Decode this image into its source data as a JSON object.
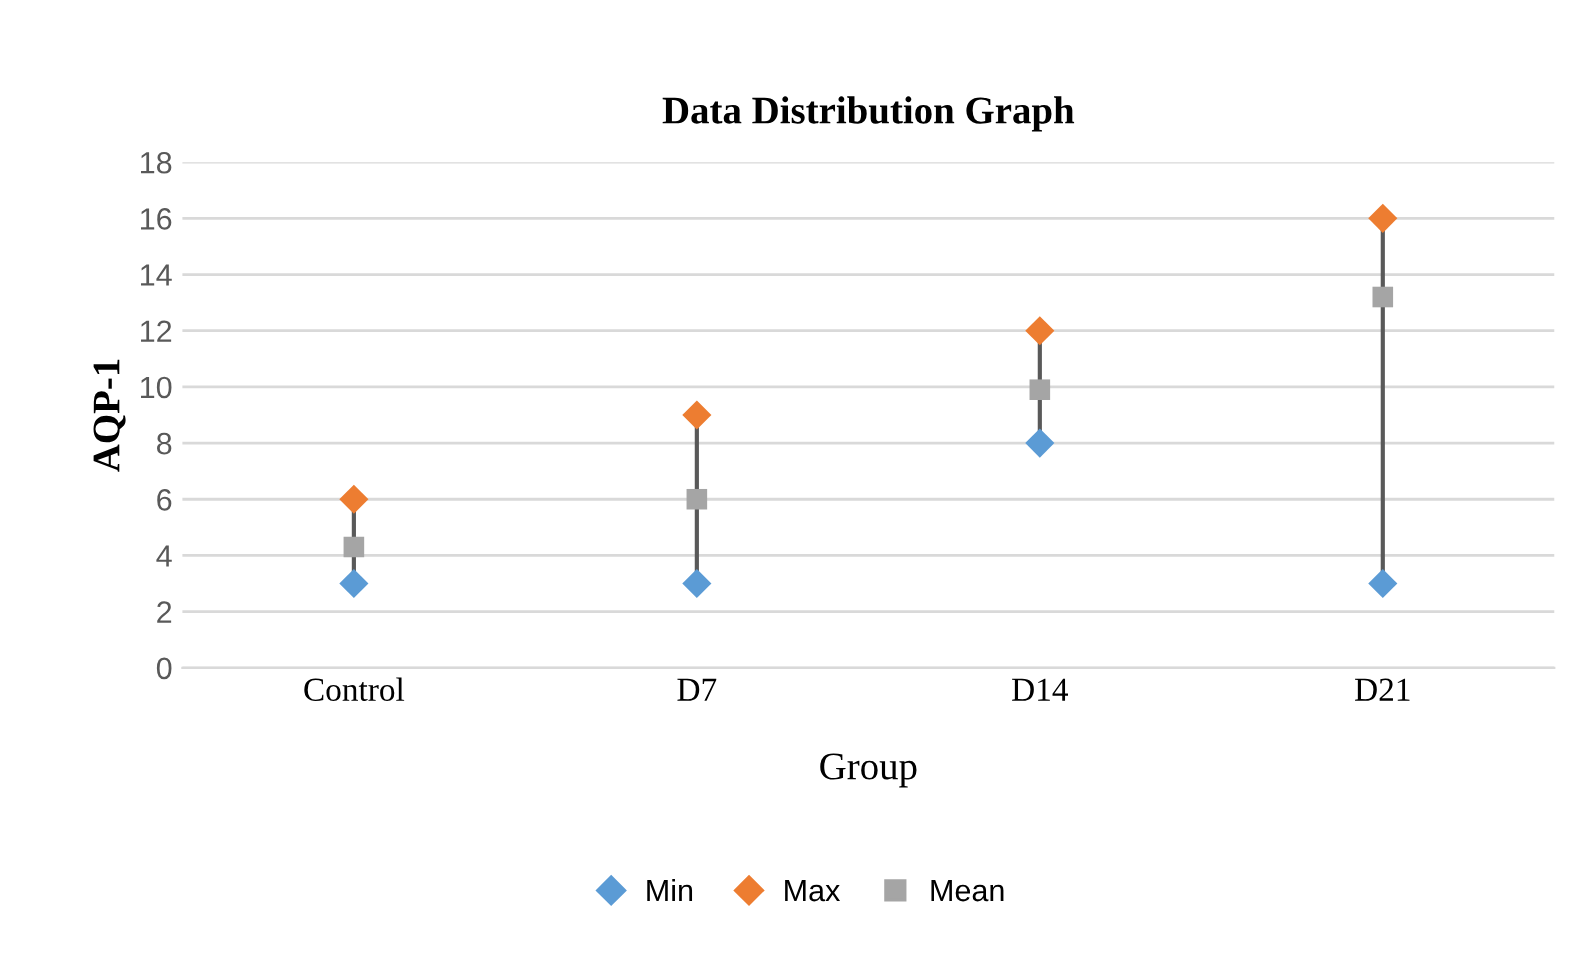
{
  "chart_data": {
    "type": "scatter",
    "title": "Data Distribution Graph",
    "xlabel": "Group",
    "ylabel": "AQP-1",
    "categories": [
      "Control",
      "D7",
      "D14",
      "D21"
    ],
    "series": [
      {
        "name": "Min",
        "color": "#5b9bd5",
        "marker": "diamond",
        "values": [
          3,
          3,
          8,
          3
        ]
      },
      {
        "name": "Max",
        "color": "#ed7d31",
        "marker": "diamond",
        "values": [
          6,
          9,
          12,
          16
        ]
      },
      {
        "name": "Mean",
        "color": "#a5a5a5",
        "marker": "square",
        "values": [
          4.3,
          6.0,
          9.9,
          13.2
        ]
      }
    ],
    "ylim": [
      0,
      18
    ],
    "yticks": [
      0,
      2,
      4,
      6,
      8,
      10,
      12,
      14,
      16,
      18
    ],
    "grid": "y",
    "legend": "bottom"
  }
}
